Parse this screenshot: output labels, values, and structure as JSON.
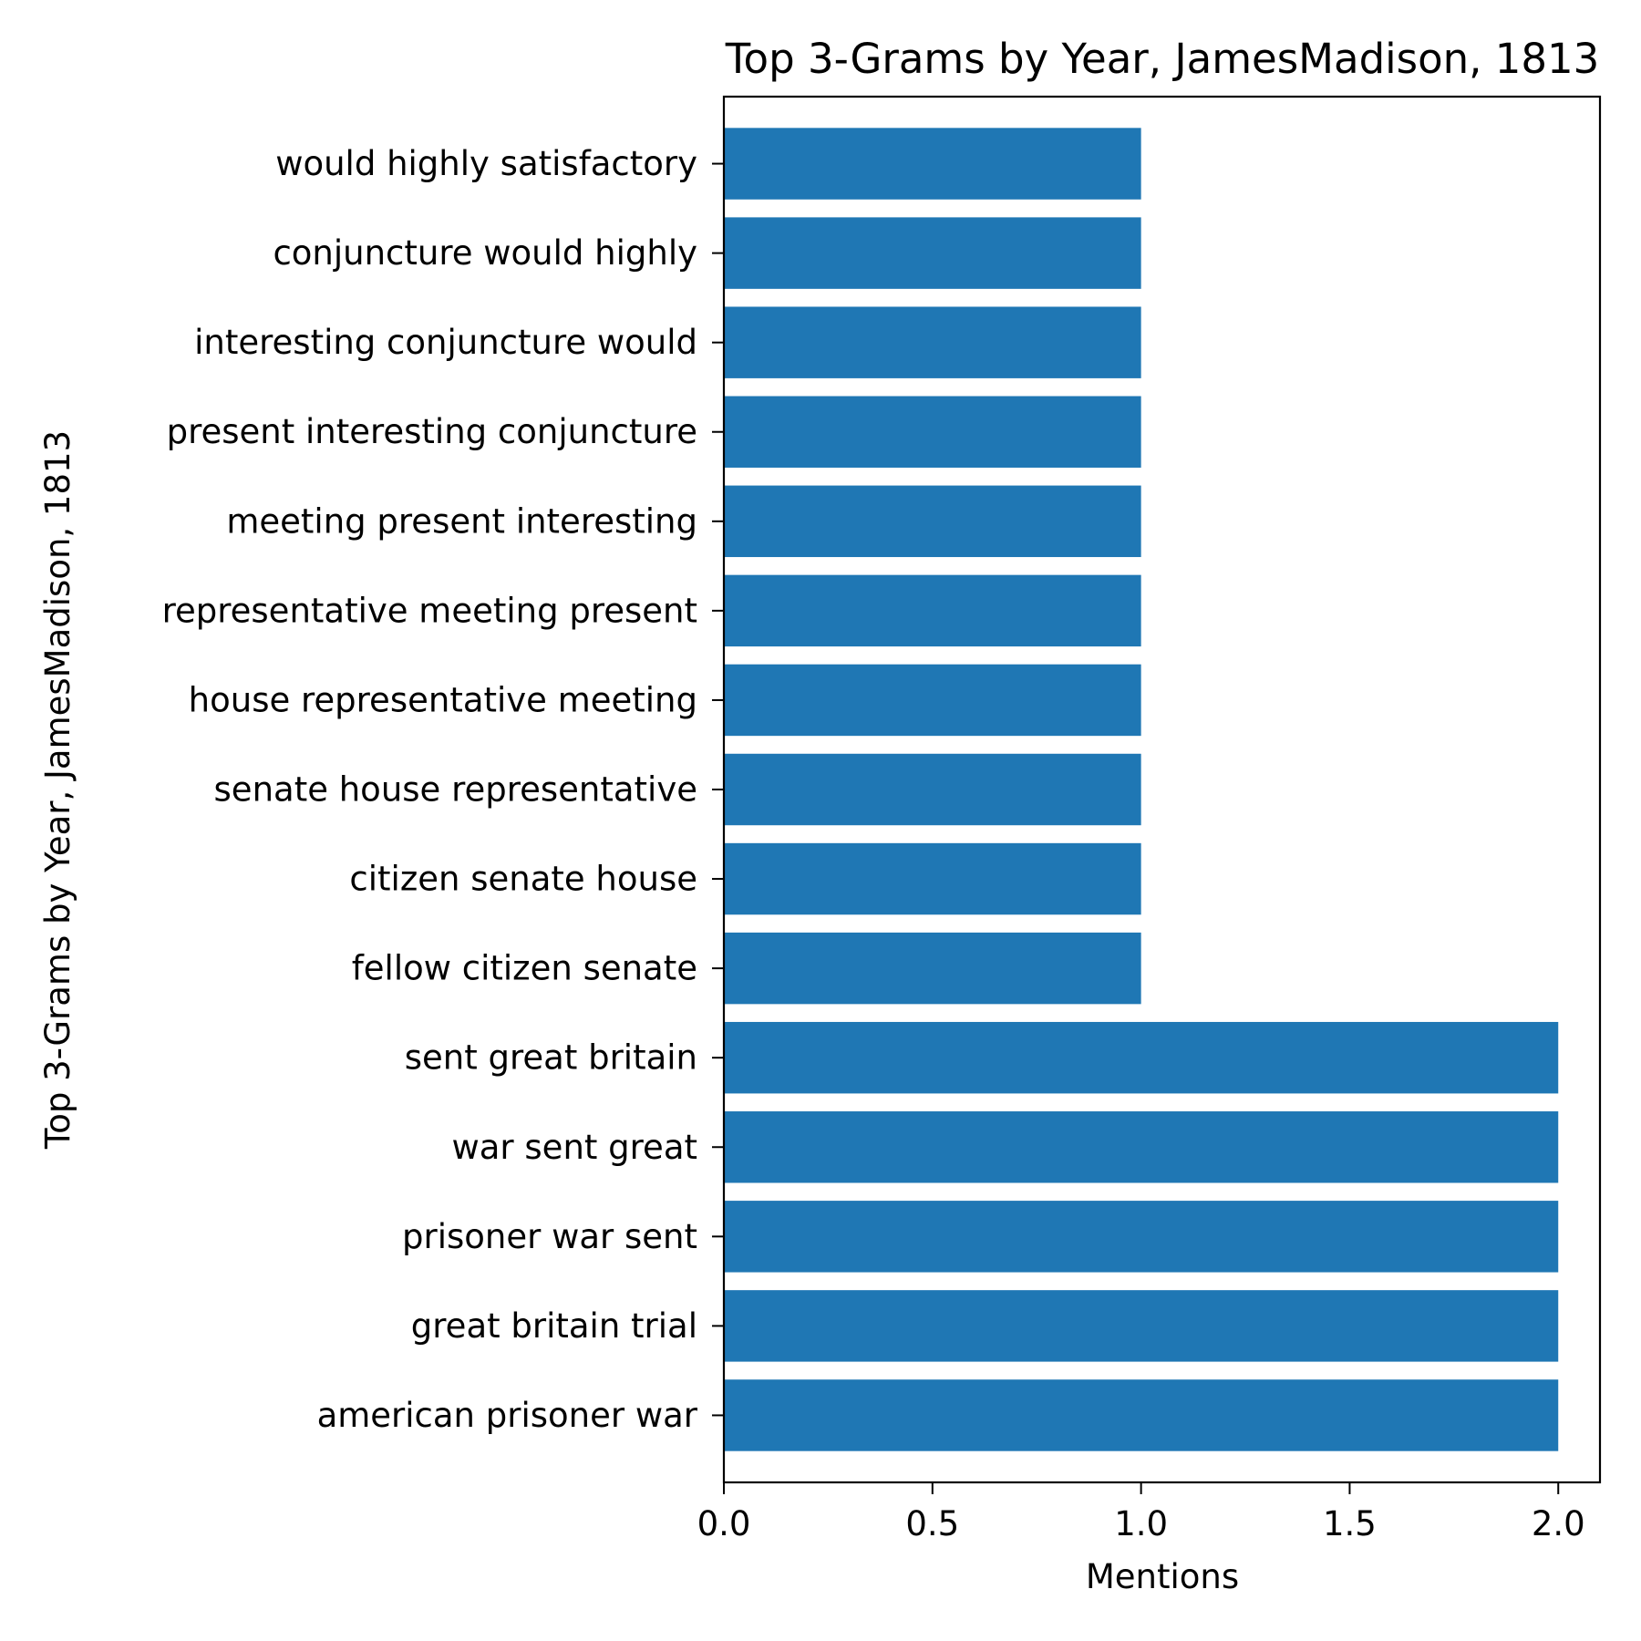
{
  "chart_data": {
    "type": "bar",
    "orientation": "horizontal",
    "title": "Top 3-Grams by Year, JamesMadison, 1813",
    "xlabel": "Mentions",
    "ylabel": "Top 3-Grams by Year, JamesMadison, 1813",
    "xlim": [
      0,
      2.1
    ],
    "xticks": [
      "0.0",
      "0.5",
      "1.0",
      "1.5",
      "2.0"
    ],
    "xtick_values": [
      0,
      0.5,
      1.0,
      1.5,
      2.0
    ],
    "grid": false,
    "legend": "none",
    "bar_color": "#1f77b4",
    "categories": [
      "american prisoner war",
      "great britain trial",
      "prisoner war sent",
      "war sent great",
      "sent great britain",
      "fellow citizen senate",
      "citizen senate house",
      "senate house representative",
      "house representative meeting",
      "representative meeting present",
      "meeting present interesting",
      "present interesting conjuncture",
      "interesting conjuncture would",
      "conjuncture would highly",
      "would highly satisfactory"
    ],
    "values": [
      2,
      2,
      2,
      2,
      2,
      1,
      1,
      1,
      1,
      1,
      1,
      1,
      1,
      1,
      1
    ]
  }
}
